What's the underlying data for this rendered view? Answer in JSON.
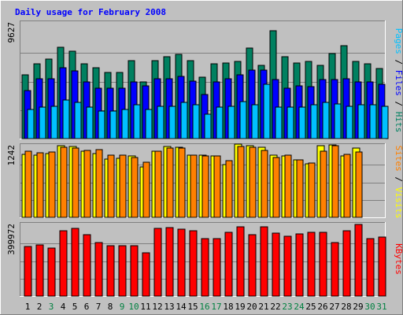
{
  "chart_data": [
    {
      "type": "bar",
      "title": "Daily usage for February 2008",
      "categories": [
        "1",
        "2",
        "3",
        "4",
        "5",
        "6",
        "7",
        "8",
        "9",
        "10",
        "11",
        "12",
        "13",
        "14",
        "15",
        "16",
        "17",
        "18",
        "19",
        "20",
        "21",
        "22",
        "23",
        "24",
        "25",
        "26",
        "27",
        "28",
        "29",
        "30",
        "31"
      ],
      "category_colors": [
        "#000000",
        "#000000",
        "#008040",
        "#000000",
        "#000000",
        "#000000",
        "#000000",
        "#000000",
        "#008040",
        "#008040",
        "#000000",
        "#000000",
        "#000000",
        "#000000",
        "#000000",
        "#008040",
        "#008040",
        "#000000",
        "#000000",
        "#000000",
        "#000000",
        "#000000",
        "#008040",
        "#008040",
        "#000000",
        "#000000",
        "#000000",
        "#000000",
        "#000000",
        "#008040",
        "#008040"
      ],
      "ylim": [
        0,
        9627
      ],
      "ytick": "9627",
      "legend": [
        "Pages",
        " / ",
        "Files",
        " / ",
        "Hits"
      ],
      "series": [
        {
          "name": "Hits",
          "color": "#008060",
          "values": [
            5300,
            6200,
            6600,
            7600,
            7300,
            6200,
            5900,
            5500,
            5500,
            6500,
            4700,
            6500,
            6800,
            7000,
            6500,
            5100,
            6200,
            6300,
            6400,
            7500,
            6100,
            9000,
            6800,
            6300,
            6400,
            6100,
            7100,
            7700,
            6400,
            6200,
            5800
          ]
        },
        {
          "name": "Files",
          "color": "#0000ff",
          "values": [
            4000,
            5000,
            5000,
            5900,
            5600,
            4700,
            4200,
            4200,
            4200,
            4700,
            4400,
            5000,
            5000,
            5200,
            4800,
            3700,
            4700,
            5000,
            5300,
            5700,
            5700,
            4900,
            4200,
            4400,
            4300,
            4900,
            4900,
            5000,
            4700,
            4700,
            4500
          ]
        },
        {
          "name": "Pages",
          "color": "#00c0ff",
          "values": [
            2400,
            2600,
            2700,
            3200,
            3000,
            2600,
            2300,
            2300,
            2400,
            2800,
            2400,
            2700,
            2700,
            3000,
            2800,
            2000,
            2600,
            2700,
            3100,
            2800,
            4500,
            2600,
            2600,
            2600,
            2800,
            3000,
            2900,
            2700,
            2800,
            2800,
            2700
          ]
        }
      ]
    },
    {
      "type": "bar",
      "ylim": [
        0,
        1242
      ],
      "ytick": "1242",
      "legend": [
        "Sites",
        " / ",
        "Visits"
      ],
      "series": [
        {
          "name": "Visits",
          "color": "#ffff00",
          "values": [
            1090,
            1080,
            1110,
            1240,
            1230,
            1140,
            1110,
            1010,
            1020,
            1060,
            870,
            1140,
            1230,
            1220,
            1080,
            1080,
            1070,
            920,
            1270,
            1240,
            1210,
            1080,
            1060,
            990,
            930,
            1240,
            1250,
            1060,
            1200,
            0,
            0
          ]
        },
        {
          "name": "Sites",
          "color": "#ff8000",
          "values": [
            1140,
            1120,
            1130,
            1210,
            1200,
            1160,
            1170,
            1080,
            1080,
            1040,
            960,
            1150,
            1200,
            1200,
            1080,
            1060,
            1060,
            980,
            1230,
            1210,
            1160,
            1040,
            1080,
            1000,
            940,
            1150,
            1240,
            1090,
            1130,
            0,
            0
          ]
        }
      ]
    },
    {
      "type": "bar",
      "ylim": [
        0,
        399972
      ],
      "ytick": "399972",
      "legend": [
        "KBytes"
      ],
      "series": [
        {
          "name": "KBytes",
          "color": "#ff0000",
          "values": [
            275000,
            286000,
            268000,
            363000,
            376000,
            343000,
            299000,
            283000,
            280000,
            280000,
            243000,
            377000,
            384000,
            375000,
            367000,
            321000,
            323000,
            357000,
            388000,
            341000,
            387000,
            353000,
            336000,
            349000,
            357000,
            358000,
            300000,
            365000,
            402000,
            320000,
            330000
          ]
        }
      ]
    }
  ],
  "colors": {
    "title": "#0000ff",
    "background": "#c0c0c0",
    "plot_background": "#c0c0c0",
    "legend_separator": "#000000"
  }
}
